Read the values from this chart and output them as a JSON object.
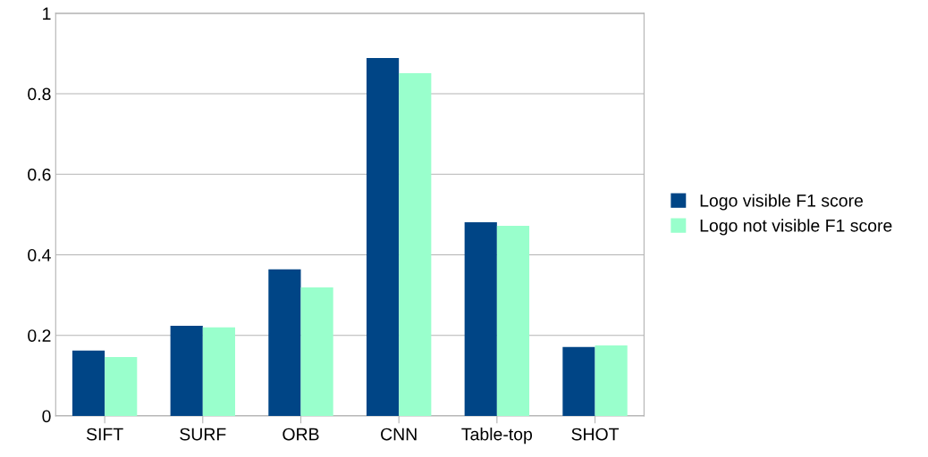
{
  "chart_data": {
    "type": "bar",
    "categories": [
      "SIFT",
      "SURF",
      "ORB",
      "CNN",
      "Table-top",
      "SHOT"
    ],
    "series": [
      {
        "name": "Logo visible F1 score",
        "color": "#004586",
        "values": [
          0.162,
          0.224,
          0.364,
          0.889,
          0.481,
          0.171
        ]
      },
      {
        "name": "Logo not visible F1 score",
        "color": "#99ffcc",
        "values": [
          0.146,
          0.22,
          0.319,
          0.851,
          0.472,
          0.175
        ]
      }
    ],
    "ylim": [
      0,
      1
    ],
    "yticks": [
      0,
      {
        "value": 0.2,
        "label": "0.2"
      },
      {
        "value": 0.4,
        "label": "0.4"
      },
      {
        "value": 0.6,
        "label": "0.6"
      },
      {
        "value": 0.8,
        "label": "0.8"
      },
      1
    ],
    "grid": "y",
    "legend": "right"
  }
}
